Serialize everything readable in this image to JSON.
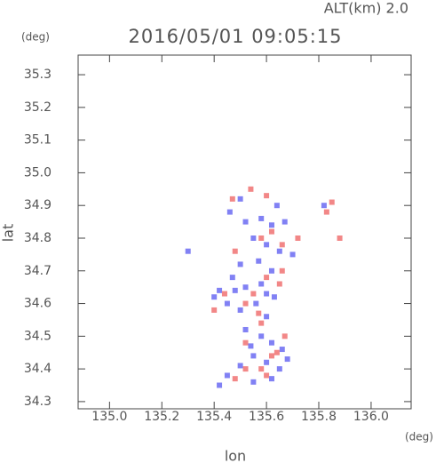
{
  "chart_data": {
    "type": "scatter",
    "title": "2016/05/01 09:05:15",
    "subtitle": "ALT(km) 2.0",
    "x_label": "lon",
    "y_label": "lat",
    "x_unit": "(deg)",
    "y_unit": "(deg)",
    "xlim": [
      134.88,
      136.153
    ],
    "ylim": [
      34.278,
      35.36
    ],
    "xticks": [
      {
        "value": 135.0,
        "label": "135.0"
      },
      135.2,
      135.4,
      135.6,
      135.8,
      {
        "value": 136.0,
        "label": "136.0"
      }
    ],
    "yticks": [
      34.3,
      34.4,
      34.5,
      34.6,
      34.7,
      34.8,
      34.9,
      {
        "value": 35.0,
        "label": "35.0"
      },
      35.1,
      35.2,
      35.3
    ],
    "series": [
      {
        "color": "#6b6bf2",
        "x": [
          135.5,
          135.46,
          135.52,
          135.58,
          135.62,
          135.67,
          135.55,
          135.6,
          135.65,
          135.7,
          135.5,
          135.47,
          135.52,
          135.58,
          135.62,
          135.45,
          135.5,
          135.56,
          135.6,
          135.63,
          135.52,
          135.58,
          135.62,
          135.66,
          135.55,
          135.6,
          135.65,
          135.5,
          135.45,
          135.42,
          135.55,
          135.62,
          135.68,
          135.48,
          135.57,
          135.64,
          135.82,
          135.42,
          135.4,
          135.3,
          135.54,
          135.6
        ],
        "values": [
          34.92,
          34.88,
          34.85,
          34.86,
          34.84,
          34.85,
          34.8,
          34.78,
          34.76,
          34.75,
          34.72,
          34.68,
          34.65,
          34.66,
          34.7,
          34.6,
          34.58,
          34.6,
          34.56,
          34.62,
          34.52,
          34.5,
          34.48,
          34.46,
          34.44,
          34.42,
          34.4,
          34.41,
          34.38,
          34.35,
          34.36,
          34.37,
          34.43,
          34.64,
          34.73,
          34.9,
          34.9,
          34.64,
          34.62,
          34.76,
          34.47,
          34.63
        ]
      },
      {
        "color": "#f07272",
        "x": [
          135.47,
          135.54,
          135.6,
          135.85,
          135.83,
          135.88,
          135.58,
          135.62,
          135.72,
          135.48,
          135.66,
          135.6,
          135.55,
          135.52,
          135.65,
          135.4,
          135.58,
          135.52,
          135.62,
          135.58,
          135.6,
          135.64,
          135.52,
          135.48,
          135.67,
          135.57,
          135.44,
          135.66
        ],
        "values": [
          34.92,
          34.95,
          34.93,
          34.91,
          34.88,
          34.8,
          34.8,
          34.82,
          34.8,
          34.76,
          34.78,
          34.68,
          34.63,
          34.6,
          34.66,
          34.58,
          34.54,
          34.48,
          34.44,
          34.4,
          34.38,
          34.45,
          34.4,
          34.37,
          34.5,
          34.57,
          34.63,
          34.7
        ]
      }
    ]
  }
}
